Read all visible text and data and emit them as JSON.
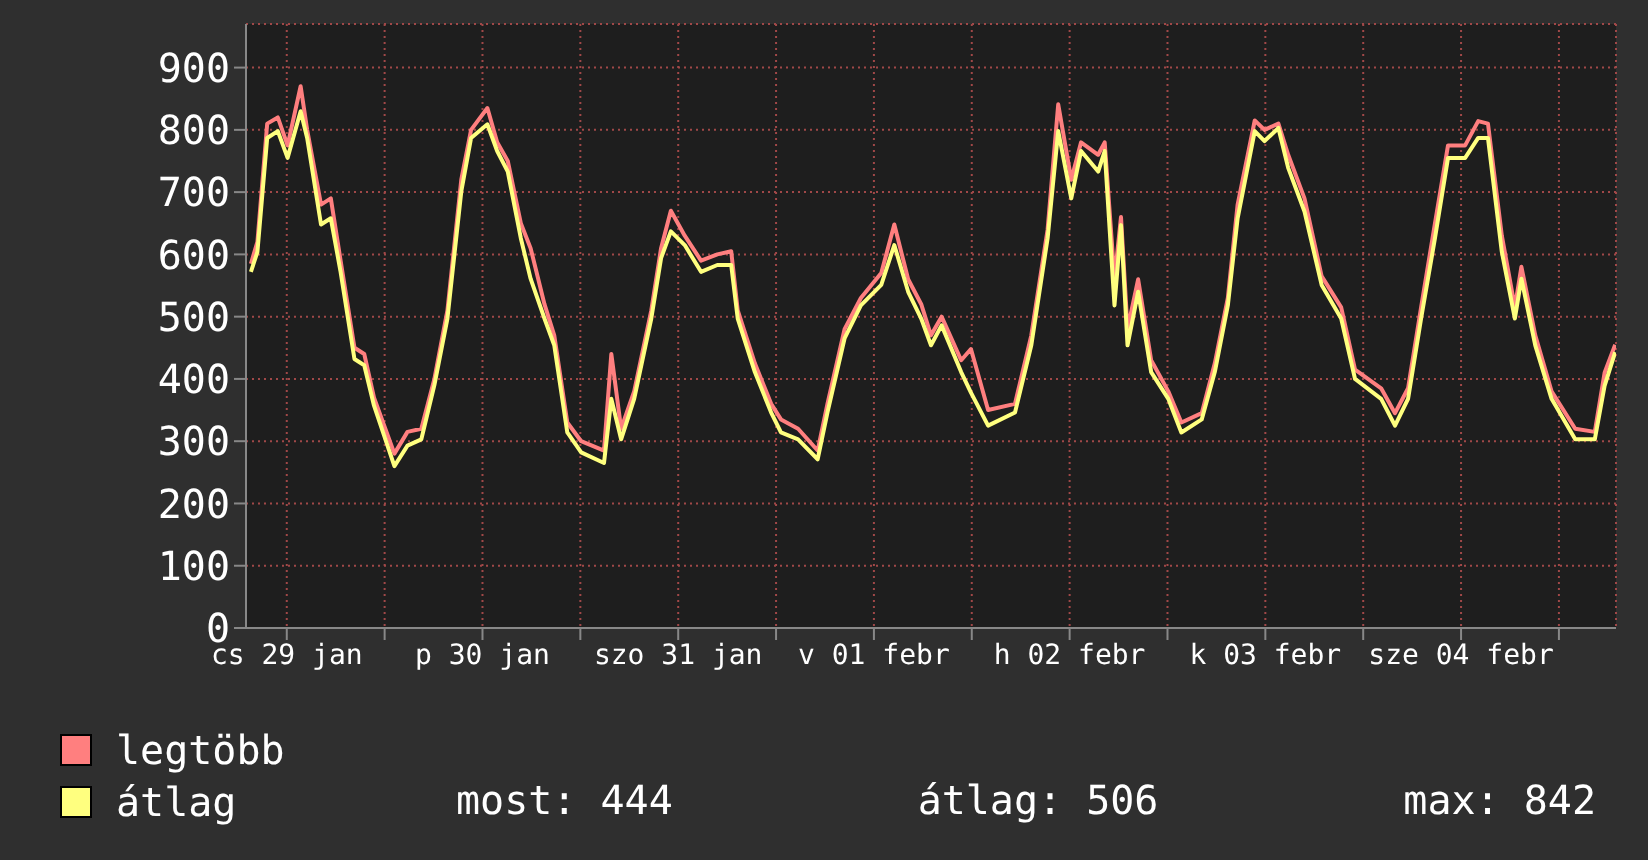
{
  "chart_data": {
    "type": "line",
    "x": [
      "--01-29T07:36",
      "--01-29T08:24",
      "--01-29T09:36",
      "--01-29T10:54",
      "--01-29T12:06",
      "--01-29T13:42",
      "--01-29T14:30",
      "--01-29T16:12",
      "--01-29T17:24",
      "--01-29T18:36",
      "--01-29T20:18",
      "--01-29T21:30",
      "--01-29T22:42",
      "--01-30T01:12",
      "--01-30T02:48",
      "--01-30T04:30",
      "--01-30T06:06",
      "--01-30T07:42",
      "--01-30T09:24",
      "--01-30T10:36",
      "--01-30T12:36",
      "--01-30T13:48",
      "--01-30T15:06",
      "--01-30T16:42",
      "--01-30T17:54",
      "--01-30T19:36",
      "--01-30T20:48",
      "--01-30T22:24",
      "--01-31T00:06",
      "--01-31T02:54",
      "--01-31T03:48",
      "--01-31T05:00",
      "--01-31T06:36",
      "--01-31T08:42",
      "--01-31T09:54",
      "--01-31T11:06",
      "--01-31T12:48",
      "--01-31T14:48",
      "--01-31T16:48",
      "--01-31T18:30",
      "--01-31T19:18",
      "--01-31T21:24",
      "--01-31T23:24",
      "--02-01T00:36",
      "--02-01T02:42",
      "--02-01T05:06",
      "--02-01T06:18",
      "--02-01T08:24",
      "--02-01T10:24",
      "--02-01T12:54",
      "--02-01T14:30",
      "--02-01T16:12",
      "--02-01T17:48",
      "--02-01T19:00",
      "--02-01T20:18",
      "--02-01T22:42",
      "--02-01T23:54",
      "--02-02T02:00",
      "--02-02T05:18",
      "--02-02T07:18",
      "--02-02T09:18",
      "--02-02T10:36",
      "--02-02T12:12",
      "--02-02T13:24",
      "--02-02T15:30",
      "--02-02T16:18",
      "--02-02T17:30",
      "--02-02T18:18",
      "--02-02T19:06",
      "--02-02T20:24",
      "--02-02T22:00",
      "--02-03T00:06",
      "--02-03T01:42",
      "--02-03T04:12",
      "--02-03T05:48",
      "--02-03T07:24",
      "--02-03T08:36",
      "--02-03T10:42",
      "--02-03T11:54",
      "--02-03T13:36",
      "--02-03T14:48",
      "--02-03T16:48",
      "--02-03T18:54",
      "--02-03T21:18",
      "--02-03T23:00",
      "--02-04T02:12",
      "--02-04T03:54",
      "--02-04T05:30",
      "--02-04T07:06",
      "--02-04T08:48",
      "--02-04T10:24",
      "--02-04T12:30",
      "--02-04T14:06",
      "--02-04T15:18",
      "--02-04T17:00",
      "--02-04T18:36",
      "--02-04T19:24",
      "--02-04T21:06",
      "--02-04T23:06",
      "--02-05T02:00",
      "--02-05T04:24",
      "--02-05T05:36",
      "--02-05T06:54"
    ],
    "series": [
      {
        "name": "legtöbb",
        "color": "#ff7f7f",
        "values": [
          585,
          620,
          810,
          820,
          775,
          870,
          800,
          680,
          690,
          590,
          450,
          440,
          370,
          280,
          315,
          320,
          400,
          510,
          720,
          800,
          835,
          780,
          750,
          650,
          610,
          520,
          470,
          330,
          300,
          285,
          440,
          320,
          380,
          510,
          610,
          670,
          630,
          590,
          600,
          605,
          510,
          425,
          360,
          335,
          320,
          285,
          360,
          480,
          530,
          570,
          648,
          560,
          520,
          470,
          500,
          430,
          448,
          350,
          360,
          470,
          640,
          841,
          720,
          780,
          760,
          780,
          560,
          660,
          480,
          560,
          430,
          380,
          330,
          345,
          425,
          530,
          680,
          815,
          800,
          810,
          760,
          690,
          565,
          515,
          415,
          385,
          345,
          385,
          515,
          650,
          775,
          775,
          814,
          810,
          630,
          515,
          580,
          470,
          380,
          320,
          315,
          410,
          455
        ]
      },
      {
        "name": "átlag",
        "color": "#ffff7f",
        "values": [
          572,
          604,
          787,
          798,
          755,
          830,
          787,
          648,
          658,
          572,
          432,
          422,
          357,
          260,
          293,
          303,
          390,
          497,
          701,
          787,
          809,
          766,
          733,
          626,
          561,
          497,
          454,
          314,
          282,
          265,
          368,
          303,
          368,
          497,
          594,
          637,
          615,
          572,
          583,
          583,
          497,
          411,
          346,
          314,
          303,
          271,
          346,
          465,
          518,
          551,
          615,
          540,
          497,
          454,
          486,
          411,
          378,
          325,
          346,
          454,
          626,
          798,
          690,
          766,
          733,
          766,
          518,
          647,
          454,
          540,
          411,
          368,
          314,
          335,
          411,
          518,
          658,
          798,
          782,
          803,
          739,
          669,
          551,
          497,
          400,
          368,
          325,
          368,
          497,
          626,
          755,
          755,
          787,
          787,
          604,
          497,
          561,
          454,
          368,
          303,
          303,
          389,
          443
        ]
      }
    ],
    "xlim": [
      "--01-29T07:00",
      "--02-05T07:00"
    ],
    "xticks": [
      {
        "value": "--01-29T12:00",
        "label": "cs 29 jan"
      },
      {
        "value": "--01-30T00:00",
        "label": null
      },
      {
        "value": "--01-30T12:00",
        "label": "p 30 jan"
      },
      {
        "value": "--01-31T00:00",
        "label": null
      },
      {
        "value": "--01-31T12:00",
        "label": "szo 31 jan"
      },
      {
        "value": "--02-01T00:00",
        "label": null
      },
      {
        "value": "--02-01T12:00",
        "label": "v 01 febr"
      },
      {
        "value": "--02-02T00:00",
        "label": null
      },
      {
        "value": "--02-02T12:00",
        "label": "h 02 febr"
      },
      {
        "value": "--02-03T00:00",
        "label": null
      },
      {
        "value": "--02-03T12:00",
        "label": "k 03 febr"
      },
      {
        "value": "--02-04T00:00",
        "label": null
      },
      {
        "value": "--02-04T12:00",
        "label": "sze 04 febr"
      },
      {
        "value": "--02-05T00:00",
        "label": null
      }
    ],
    "ylim": [
      0,
      970
    ],
    "yticks": [
      0,
      100,
      200,
      300,
      400,
      500,
      600,
      700,
      800,
      900
    ],
    "grid": true,
    "legend": "bottom left",
    "annotations": [
      "most: 444",
      "átlag: 506",
      "max: 842"
    ]
  }
}
